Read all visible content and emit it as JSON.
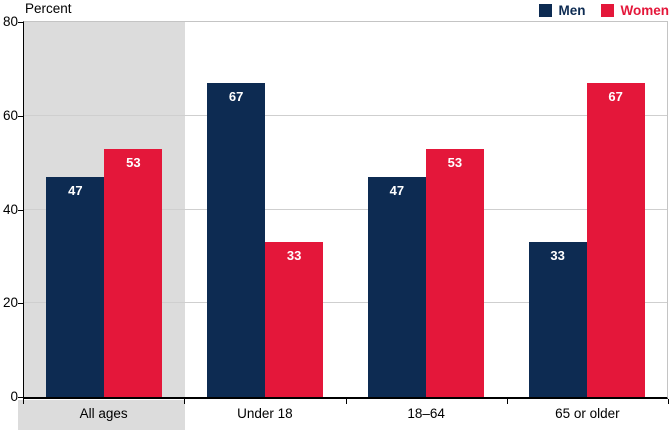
{
  "chart": {
    "axis_title": "Percent"
  },
  "chart_data": {
    "type": "bar",
    "title": "",
    "ylabel": "Percent",
    "xlabel": "",
    "ylim": [
      0,
      80
    ],
    "yticks": [
      0,
      20,
      40,
      60,
      80
    ],
    "grid": "horizontal",
    "legend_position": "top-right",
    "categories": [
      "All ages",
      "Under 18",
      "18–64",
      "65 or older"
    ],
    "series": [
      {
        "name": "Men",
        "color": "#0d2b52",
        "values": [
          47,
          67,
          47,
          33
        ]
      },
      {
        "name": "Women",
        "color": "#e4173a",
        "values": [
          53,
          33,
          53,
          67
        ]
      }
    ],
    "bar_value_labels": [
      [
        47,
        67,
        47,
        33
      ],
      [
        53,
        33,
        53,
        67
      ]
    ],
    "highlighted_category": "All ages",
    "colors": {
      "men": "#0d2b52",
      "women": "#e4173a",
      "highlight_band": "#dcdcdc",
      "gridline": "#cfcfcf",
      "plot_border": "#c4c4c4",
      "axis": "#000000",
      "bar_label_text": "#ffffff"
    }
  }
}
